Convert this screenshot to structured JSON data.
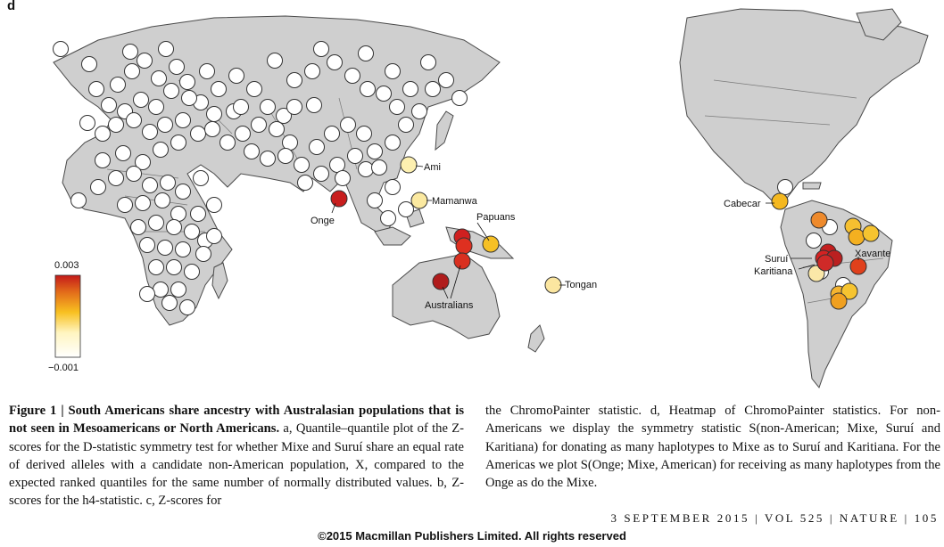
{
  "panel_letter": "d",
  "legend": {
    "max_label": "0.003",
    "min_label": "−0.001",
    "gradient_colors": [
      "#ffffff",
      "#fff5c0",
      "#f8c020",
      "#e26a1a",
      "#c41a1a"
    ]
  },
  "map_labels": {
    "ami": "Ami",
    "mamanwa": "Mamanwa",
    "onge": "Onge",
    "papuans": "Papuans",
    "tongan": "Tongan",
    "australians": "Australians",
    "cabecar": "Cabecar",
    "surui": "Suruí",
    "karitiana": "Karitiana",
    "xavante": "Xavante"
  },
  "colors": {
    "land": "#cfcfcf",
    "coast": "#4a4a4a",
    "point_outline": "#333333",
    "neutral_point": "#ffffff"
  },
  "caption": {
    "left_bold": "Figure 1 | South Americans share ancestry with Australasian populations that is not seen in Mesoamericans or North Americans.",
    "left_text": " a, Quantile–quantile plot of the Z-scores for the D-statistic symmetry test for whether Mixe and Suruí share an equal rate of derived alleles with a candidate non-American population, X, compared to the expected ranked quantiles for the same number of normally distributed values. b, Z-scores for the h4-statistic. c, Z-scores for",
    "right_text": "the ChromoPainter statistic. d, Heatmap of ChromoPainter statistics. For non-Americans we display the symmetry statistic S(non-American; Mixe, Suruí and Karitiana) for donating as many haplotypes to Mixe as to Suruí and Karitiana. For the Americas we plot S(Onge; Mixe, American) for receiving as many haplotypes from the Onge as do the Mixe."
  },
  "footer": "3 SEPTEMBER 2015 | VOL 525 | NATURE | 105",
  "copyright": "©2015 Macmillan Publishers Limited. All rights reserved"
}
